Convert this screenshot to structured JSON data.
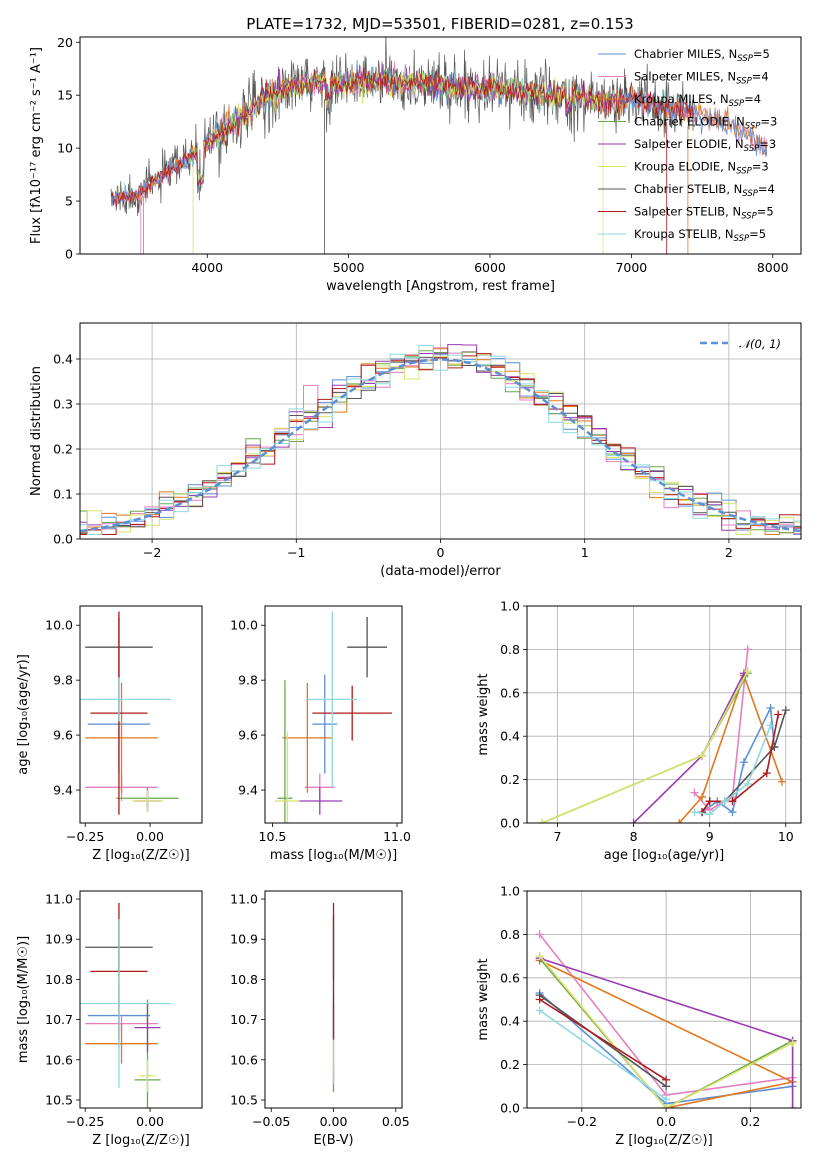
{
  "title": "PLATE=1732, MJD=53501, FIBERID=0281, z=0.153",
  "colors": {
    "chabrier_miles": "#5b8fd6",
    "salpeter_miles": "#e77ebf",
    "kroupa_miles": "#e1781e",
    "chabrier_elodie": "#6aa84f",
    "salpeter_elodie": "#9a3bb3",
    "kroupa_elodie": "#d8e36c",
    "chabrier_stelib": "#555555",
    "salpeter_stelib": "#b01a1a",
    "kroupa_stelib": "#8ed9e0",
    "normal_line": "#5b8fd6"
  },
  "models": [
    {
      "key": "chabrier_miles",
      "base": "Chabrier MILES, N",
      "sub": "SSP",
      "tail": "=5"
    },
    {
      "key": "salpeter_miles",
      "base": "Salpeter MILES, N",
      "sub": "SSP",
      "tail": "=4"
    },
    {
      "key": "kroupa_miles",
      "base": "Kroupa MILES, N",
      "sub": "SSP",
      "tail": "=4"
    },
    {
      "key": "chabrier_elodie",
      "base": "Chabrier ELODIE, N",
      "sub": "SSP",
      "tail": "=3"
    },
    {
      "key": "salpeter_elodie",
      "base": "Salpeter ELODIE, N",
      "sub": "SSP",
      "tail": "=3"
    },
    {
      "key": "kroupa_elodie",
      "base": "Kroupa ELODIE, N",
      "sub": "SSP",
      "tail": "=3"
    },
    {
      "key": "chabrier_stelib",
      "base": "Chabrier STELIB, N",
      "sub": "SSP",
      "tail": "=4"
    },
    {
      "key": "salpeter_stelib",
      "base": "Salpeter STELIB, N",
      "sub": "SSP",
      "tail": "=5"
    },
    {
      "key": "kroupa_stelib",
      "base": "Kroupa STELIB, N",
      "sub": "SSP",
      "tail": "=5"
    }
  ],
  "chart_data": [
    {
      "id": "spectrum",
      "type": "line",
      "xlabel": "wavelength [Angstrom, rest frame]",
      "ylabel": "Flux [fλ10⁻¹⁷ erg cm⁻² s⁻¹ A⁻¹]",
      "xlim": [
        3100,
        8200
      ],
      "ylim": [
        0,
        20.5
      ],
      "xticks": [
        4000,
        5000,
        6000,
        7000,
        8000
      ],
      "yticks": [
        0,
        5,
        10,
        15,
        20
      ],
      "grid": false,
      "legend": "right",
      "continuum": {
        "x": [
          3300,
          3500,
          3700,
          3900,
          4000,
          4200,
          4400,
          4600,
          4800,
          5000,
          5200,
          5400,
          5600,
          5800,
          6000,
          6200,
          6400,
          6600,
          6800,
          7000,
          7200,
          7400,
          7600,
          7800,
          8000
        ],
        "y": [
          5.2,
          5.6,
          7.5,
          9.3,
          10.5,
          12.5,
          14.6,
          15.8,
          16.3,
          16.0,
          16.4,
          16.2,
          16.1,
          15.7,
          15.8,
          15.4,
          15.0,
          15.2,
          14.3,
          14.6,
          14.0,
          13.5,
          12.6,
          11.5,
          9.4
        ]
      }
    },
    {
      "id": "residuals",
      "type": "histogram",
      "xlabel": "(data-model)/error",
      "ylabel": "Normed distribution",
      "xlim": [
        -2.5,
        2.5
      ],
      "ylim": [
        0,
        0.48
      ],
      "xticks": [
        -2,
        -1,
        0,
        1,
        2
      ],
      "yticks": [
        0.0,
        0.1,
        0.2,
        0.3,
        0.4
      ],
      "grid": true,
      "legend": "top-right",
      "normal_label": "𝒩(0, 1)",
      "bin_width": 0.1
    },
    {
      "id": "z_age",
      "type": "errorbar",
      "xlabel": "Z [log₁₀(Z/Z☉)]",
      "ylabel": "age  [log₁₀(age/yr)]",
      "xlim": [
        -0.27,
        0.2
      ],
      "ylim": [
        9.28,
        10.07
      ],
      "xticks": [
        -0.25,
        0.0
      ],
      "yticks": [
        9.4,
        9.6,
        9.8,
        10.0
      ],
      "grid": false,
      "points": [
        {
          "k": "chabrier_miles",
          "x": -0.12,
          "xe": 0.12,
          "y": 9.64,
          "ye": 0.18
        },
        {
          "k": "salpeter_miles",
          "x": -0.11,
          "xe": 0.14,
          "y": 9.41,
          "ye": 0.05
        },
        {
          "k": "kroupa_miles",
          "x": -0.11,
          "xe": 0.14,
          "y": 9.59,
          "ye": 0.2
        },
        {
          "k": "chabrier_elodie",
          "x": -0.01,
          "xe": 0.12,
          "y": 9.37,
          "ye": 0.04
        },
        {
          "k": "salpeter_elodie",
          "x": -0.01,
          "xe": 0.05,
          "y": 9.36,
          "ye": 0.04
        },
        {
          "k": "kroupa_elodie",
          "x": -0.01,
          "xe": 0.06,
          "y": 9.36,
          "ye": 0.04
        },
        {
          "k": "chabrier_stelib",
          "x": -0.12,
          "xe": 0.13,
          "y": 9.92,
          "ye": 0.11
        },
        {
          "k": "salpeter_stelib",
          "x": -0.12,
          "xe": 0.11,
          "y": 9.68,
          "ye": 0.37
        },
        {
          "k": "kroupa_stelib",
          "x": -0.12,
          "xe": 0.2,
          "y": 9.73,
          "ye": 0.08
        }
      ]
    },
    {
      "id": "mass_age",
      "type": "errorbar",
      "xlabel": "mass [log₁₀(M/M☉)]",
      "ylabel": "",
      "xlim": [
        10.47,
        11.02
      ],
      "ylim": [
        9.28,
        10.07
      ],
      "xticks": [
        10.5,
        11.0
      ],
      "yticks": [
        9.4,
        9.6,
        9.8,
        10.0
      ],
      "grid": false,
      "points": [
        {
          "k": "chabrier_miles",
          "x": 10.71,
          "xe": 0.05,
          "y": 9.64,
          "ye": 0.18
        },
        {
          "k": "salpeter_miles",
          "x": 10.69,
          "xe": 0.06,
          "y": 9.41,
          "ye": 0.05
        },
        {
          "k": "kroupa_miles",
          "x": 10.64,
          "xe": 0.1,
          "y": 9.59,
          "ye": 0.2
        },
        {
          "k": "chabrier_elodie",
          "x": 10.55,
          "xe": 0.03,
          "y": 9.37,
          "ye": 0.43
        },
        {
          "k": "salpeter_elodie",
          "x": 10.69,
          "xe": 0.09,
          "y": 9.36,
          "ye": 0.05
        },
        {
          "k": "kroupa_elodie",
          "x": 10.56,
          "xe": 0.05,
          "y": 9.36,
          "ye": 0.25
        },
        {
          "k": "chabrier_stelib",
          "x": 10.88,
          "xe": 0.08,
          "y": 9.92,
          "ye": 0.11
        },
        {
          "k": "salpeter_stelib",
          "x": 10.82,
          "xe": 0.16,
          "y": 9.68,
          "ye": 0.1
        },
        {
          "k": "kroupa_stelib",
          "x": 10.74,
          "xe": 0.1,
          "y": 9.73,
          "ye": 0.32
        }
      ]
    },
    {
      "id": "age_weight",
      "type": "line",
      "xlabel": "age  [log₁₀(age/yr)]",
      "ylabel": "mass weight",
      "xlim": [
        6.6,
        10.2
      ],
      "ylim": [
        0,
        1.0
      ],
      "xticks": [
        7,
        8,
        9,
        10
      ],
      "yticks": [
        0.0,
        0.2,
        0.4,
        0.6,
        0.8,
        1.0
      ],
      "grid": true,
      "series": [
        {
          "k": "chabrier_miles",
          "x": [
            8.9,
            9.1,
            9.3,
            9.45,
            9.8,
            9.85
          ],
          "y": [
            0.05,
            0.1,
            0.05,
            0.28,
            0.53,
            0.35
          ]
        },
        {
          "k": "salpeter_miles",
          "x": [
            8.8,
            9.0,
            9.3,
            9.5
          ],
          "y": [
            0.14,
            0.06,
            0.12,
            0.8
          ]
        },
        {
          "k": "kroupa_miles",
          "x": [
            8.6,
            8.9,
            9.45,
            9.95
          ],
          "y": [
            0.0,
            0.12,
            0.68,
            0.19
          ]
        },
        {
          "k": "chabrier_elodie",
          "x": [
            6.8,
            8.9,
            9.5
          ],
          "y": [
            0.0,
            0.31,
            0.69
          ]
        },
        {
          "k": "salpeter_elodie",
          "x": [
            8.0,
            8.9,
            9.45
          ],
          "y": [
            0.0,
            0.31,
            0.69
          ]
        },
        {
          "k": "kroupa_elodie",
          "x": [
            6.8,
            8.9,
            9.5
          ],
          "y": [
            0.0,
            0.31,
            0.7
          ]
        },
        {
          "k": "chabrier_stelib",
          "x": [
            8.9,
            9.0,
            9.2,
            9.85,
            10.0
          ],
          "y": [
            0.05,
            0.1,
            0.1,
            0.35,
            0.52
          ]
        },
        {
          "k": "salpeter_stelib",
          "x": [
            8.9,
            9.0,
            9.3,
            9.75,
            9.9
          ],
          "y": [
            0.05,
            0.1,
            0.1,
            0.23,
            0.5
          ]
        },
        {
          "k": "kroupa_stelib",
          "x": [
            8.8,
            9.0,
            9.2,
            9.5,
            9.8
          ],
          "y": [
            0.05,
            0.04,
            0.1,
            0.18,
            0.45
          ]
        }
      ]
    },
    {
      "id": "z_mass",
      "type": "errorbar",
      "xlabel": "Z [log₁₀(Z/Z☉)]",
      "ylabel": "mass [log₁₀(M/M☉)]",
      "xlim": [
        -0.27,
        0.2
      ],
      "ylim": [
        10.48,
        11.02
      ],
      "xticks": [
        -0.25,
        0.0
      ],
      "yticks": [
        10.5,
        10.6,
        10.7,
        10.8,
        10.9,
        11.0
      ],
      "grid": false,
      "points": [
        {
          "k": "chabrier_miles",
          "x": -0.12,
          "xe": 0.12,
          "y": 10.71,
          "ye": 0.08
        },
        {
          "k": "salpeter_miles",
          "x": -0.11,
          "xe": 0.14,
          "y": 10.69,
          "ye": 0.02
        },
        {
          "k": "kroupa_miles",
          "x": -0.11,
          "xe": 0.14,
          "y": 10.64,
          "ye": 0.05
        },
        {
          "k": "chabrier_elodie",
          "x": -0.01,
          "xe": 0.05,
          "y": 10.55,
          "ye": 0.2
        },
        {
          "k": "salpeter_elodie",
          "x": -0.01,
          "xe": 0.05,
          "y": 10.68,
          "ye": 0.06
        },
        {
          "k": "kroupa_elodie",
          "x": -0.01,
          "xe": 0.03,
          "y": 10.56,
          "ye": 0.04
        },
        {
          "k": "chabrier_stelib",
          "x": -0.12,
          "xe": 0.13,
          "y": 10.88,
          "ye": 0.07
        },
        {
          "k": "salpeter_stelib",
          "x": -0.12,
          "xe": 0.11,
          "y": 10.82,
          "ye": 0.17
        },
        {
          "k": "kroupa_stelib",
          "x": -0.12,
          "xe": 0.2,
          "y": 10.74,
          "ye": 0.21
        }
      ]
    },
    {
      "id": "ebv_mass",
      "type": "errorbar",
      "xlabel": "E(B-V)",
      "ylabel": "",
      "xlim": [
        -0.055,
        0.055
      ],
      "ylim": [
        10.48,
        11.02
      ],
      "xticks": [
        -0.05,
        0.0,
        0.05
      ],
      "yticks": [
        10.5,
        10.6,
        10.7,
        10.8,
        10.9,
        11.0
      ],
      "grid": false,
      "points": [
        {
          "k": "chabrier_miles",
          "x": 0.0,
          "xe": 0.0,
          "y": 10.71,
          "ye": 0.05
        },
        {
          "k": "kroupa_miles",
          "x": 0.0,
          "xe": 0.0,
          "y": 10.64,
          "ye": 0.1
        },
        {
          "k": "chabrier_elodie",
          "x": 0.0,
          "xe": 0.0,
          "y": 10.55,
          "ye": 0.03
        },
        {
          "k": "chabrier_stelib",
          "x": 0.0,
          "xe": 0.0,
          "y": 10.88,
          "ye": 0.08
        },
        {
          "k": "kroupa_stelib",
          "x": 0.0,
          "xe": 0.0,
          "y": 10.74,
          "ye": 0.2
        },
        {
          "k": "salpeter_stelib",
          "x": 0.0,
          "xe": 0.0,
          "y": 10.82,
          "ye": 0.17
        }
      ]
    },
    {
      "id": "z_weight",
      "type": "line",
      "xlabel": "Z [log₁₀(Z/Z☉)]",
      "ylabel": "mass weight",
      "xlim": [
        -0.33,
        0.32
      ],
      "ylim": [
        0,
        1.0
      ],
      "xticks": [
        -0.2,
        0.0,
        0.2
      ],
      "yticks": [
        0.0,
        0.2,
        0.4,
        0.6,
        0.8,
        1.0
      ],
      "grid": true,
      "series": [
        {
          "k": "chabrier_miles",
          "x": [
            -0.3,
            0.0,
            0.3
          ],
          "y": [
            0.53,
            0.02,
            0.1
          ]
        },
        {
          "k": "salpeter_miles",
          "x": [
            -0.3,
            0.0,
            0.3
          ],
          "y": [
            0.8,
            0.06,
            0.14
          ]
        },
        {
          "k": "kroupa_miles",
          "x": [
            -0.3,
            0.3,
            0.0
          ],
          "y": [
            0.68,
            0.12,
            0.0
          ]
        },
        {
          "k": "chabrier_elodie",
          "x": [
            -0.3,
            0.0,
            0.3
          ],
          "y": [
            0.69,
            0.0,
            0.31
          ]
        },
        {
          "k": "salpeter_elodie",
          "x": [
            -0.3,
            0.3,
            0.3
          ],
          "y": [
            0.69,
            0.31,
            0.0
          ]
        },
        {
          "k": "kroupa_elodie",
          "x": [
            -0.3,
            0.0,
            0.3
          ],
          "y": [
            0.7,
            0.0,
            0.3
          ]
        },
        {
          "k": "chabrier_stelib",
          "x": [
            -0.3,
            0.0
          ],
          "y": [
            0.52,
            0.1
          ]
        },
        {
          "k": "salpeter_stelib",
          "x": [
            -0.3,
            0.0
          ],
          "y": [
            0.5,
            0.13
          ]
        },
        {
          "k": "kroupa_stelib",
          "x": [
            -0.3,
            0.0
          ],
          "y": [
            0.45,
            0.04
          ]
        }
      ]
    }
  ]
}
